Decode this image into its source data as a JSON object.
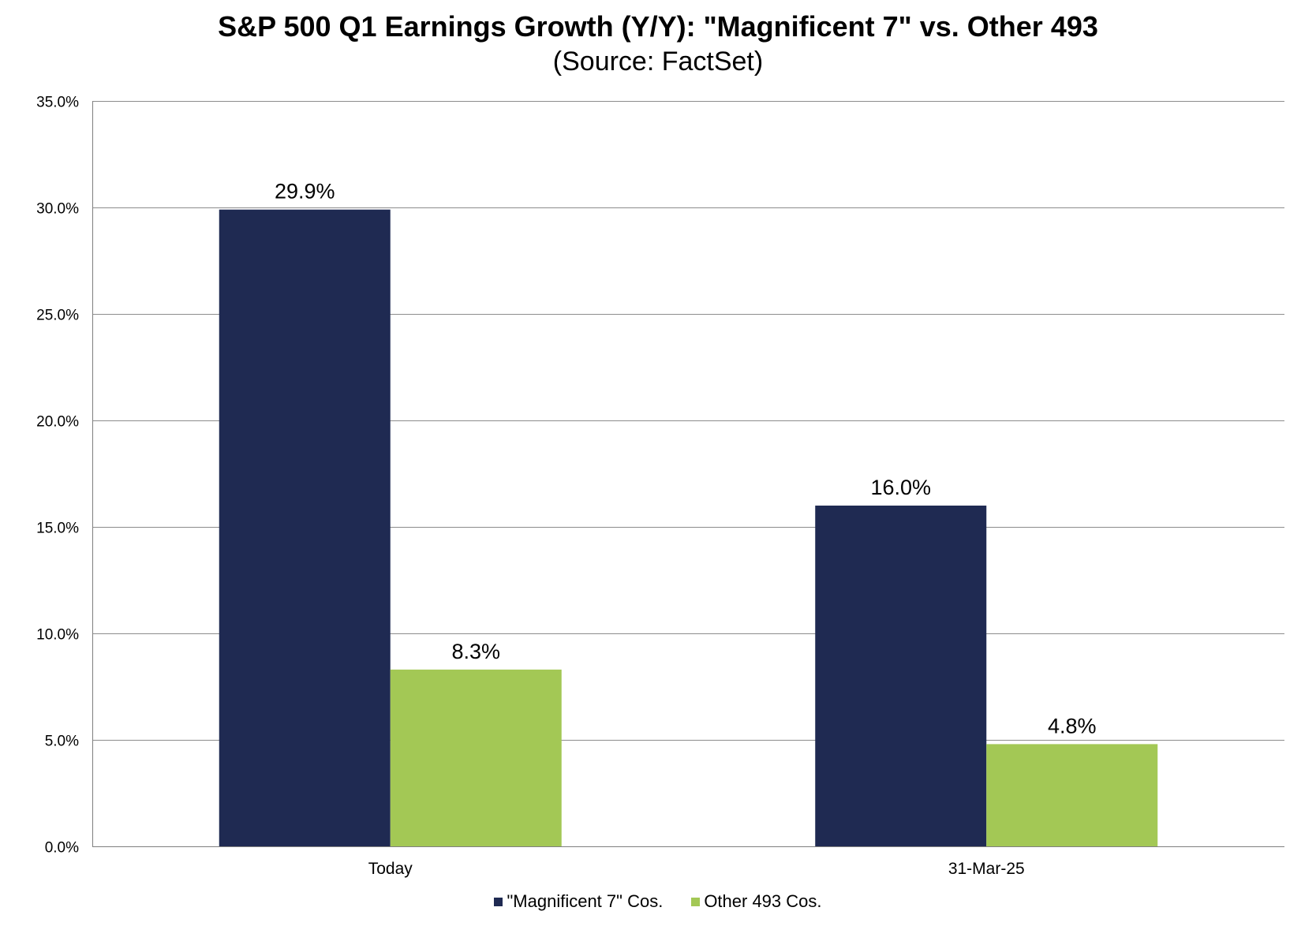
{
  "chart_data": {
    "type": "bar",
    "title": "S&P 500 Q1 Earnings Growth (Y/Y): \"Magnificent 7\" vs. Other 493",
    "subtitle": "(Source: FactSet)",
    "categories": [
      "Today",
      "31-Mar-25"
    ],
    "series": [
      {
        "name": "\"Magnificent 7\" Cos.",
        "color": "#1f2a52",
        "values": [
          29.9,
          16.0
        ],
        "labels": [
          "29.9%",
          "16.0%"
        ]
      },
      {
        "name": "Other 493 Cos.",
        "color": "#a3c855",
        "values": [
          8.3,
          4.8
        ],
        "labels": [
          "8.3%",
          "4.8%"
        ]
      }
    ],
    "ylim": [
      0,
      35
    ],
    "yticks": [
      0,
      5,
      10,
      15,
      20,
      25,
      30,
      35
    ],
    "ytick_labels": [
      "0.0%",
      "5.0%",
      "10.0%",
      "15.0%",
      "20.0%",
      "25.0%",
      "30.0%",
      "35.0%"
    ],
    "xlabel": "",
    "ylabel": "",
    "grid": true,
    "legend_position": "bottom-center"
  }
}
